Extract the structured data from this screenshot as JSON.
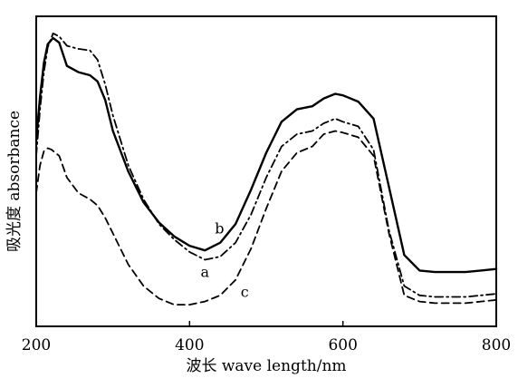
{
  "chart_data": {
    "type": "line",
    "xlabel": "波长 wave length/nm",
    "ylabel": "吸光度 absorbance",
    "xlim": [
      200,
      800
    ],
    "ylim": [
      0,
      1.0
    ],
    "x_ticks": [
      200,
      400,
      600,
      800
    ],
    "y_ticks_labeled": false,
    "grid": false,
    "legend": "none",
    "series": [
      {
        "name": "a",
        "style": "dash-dot",
        "x": [
          200,
          205,
          210,
          215,
          222,
          230,
          240,
          255,
          270,
          280,
          290,
          300,
          320,
          340,
          360,
          380,
          400,
          420,
          440,
          460,
          480,
          500,
          520,
          540,
          560,
          575,
          590,
          600,
          620,
          640,
          660,
          680,
          700,
          720,
          740,
          760,
          780,
          800
        ],
        "y": [
          0.55,
          0.7,
          0.82,
          0.9,
          0.945,
          0.935,
          0.905,
          0.895,
          0.89,
          0.86,
          0.78,
          0.68,
          0.52,
          0.41,
          0.33,
          0.28,
          0.24,
          0.215,
          0.225,
          0.27,
          0.36,
          0.48,
          0.58,
          0.62,
          0.63,
          0.655,
          0.67,
          0.66,
          0.645,
          0.57,
          0.31,
          0.13,
          0.1,
          0.095,
          0.095,
          0.095,
          0.1,
          0.105
        ]
      },
      {
        "name": "b",
        "style": "solid",
        "x": [
          200,
          205,
          210,
          215,
          222,
          230,
          240,
          255,
          270,
          280,
          290,
          300,
          320,
          340,
          360,
          380,
          400,
          420,
          440,
          460,
          480,
          500,
          520,
          540,
          560,
          575,
          590,
          600,
          620,
          640,
          660,
          680,
          700,
          720,
          740,
          760,
          780,
          800
        ],
        "y": [
          0.6,
          0.74,
          0.85,
          0.91,
          0.93,
          0.915,
          0.84,
          0.82,
          0.81,
          0.79,
          0.73,
          0.63,
          0.5,
          0.4,
          0.335,
          0.29,
          0.26,
          0.245,
          0.27,
          0.33,
          0.44,
          0.56,
          0.66,
          0.7,
          0.71,
          0.735,
          0.75,
          0.745,
          0.725,
          0.67,
          0.45,
          0.23,
          0.18,
          0.175,
          0.175,
          0.175,
          0.18,
          0.185
        ]
      },
      {
        "name": "c",
        "style": "dashed",
        "x": [
          200,
          205,
          210,
          215,
          220,
          230,
          240,
          255,
          270,
          280,
          290,
          300,
          320,
          340,
          360,
          380,
          400,
          420,
          440,
          460,
          480,
          500,
          520,
          540,
          560,
          575,
          590,
          600,
          620,
          640,
          660,
          680,
          700,
          720,
          740,
          760,
          780,
          800
        ],
        "y": [
          0.43,
          0.52,
          0.565,
          0.575,
          0.57,
          0.55,
          0.48,
          0.43,
          0.41,
          0.39,
          0.35,
          0.3,
          0.2,
          0.13,
          0.09,
          0.07,
          0.07,
          0.08,
          0.1,
          0.15,
          0.25,
          0.38,
          0.5,
          0.56,
          0.58,
          0.62,
          0.63,
          0.625,
          0.61,
          0.55,
          0.3,
          0.1,
          0.08,
          0.075,
          0.075,
          0.075,
          0.08,
          0.085
        ]
      }
    ],
    "annotations": [
      {
        "text": "b",
        "x": 439,
        "y": 0.3
      },
      {
        "text": "a",
        "x": 420,
        "y": 0.16
      },
      {
        "text": "c",
        "x": 472,
        "y": 0.095
      }
    ]
  }
}
